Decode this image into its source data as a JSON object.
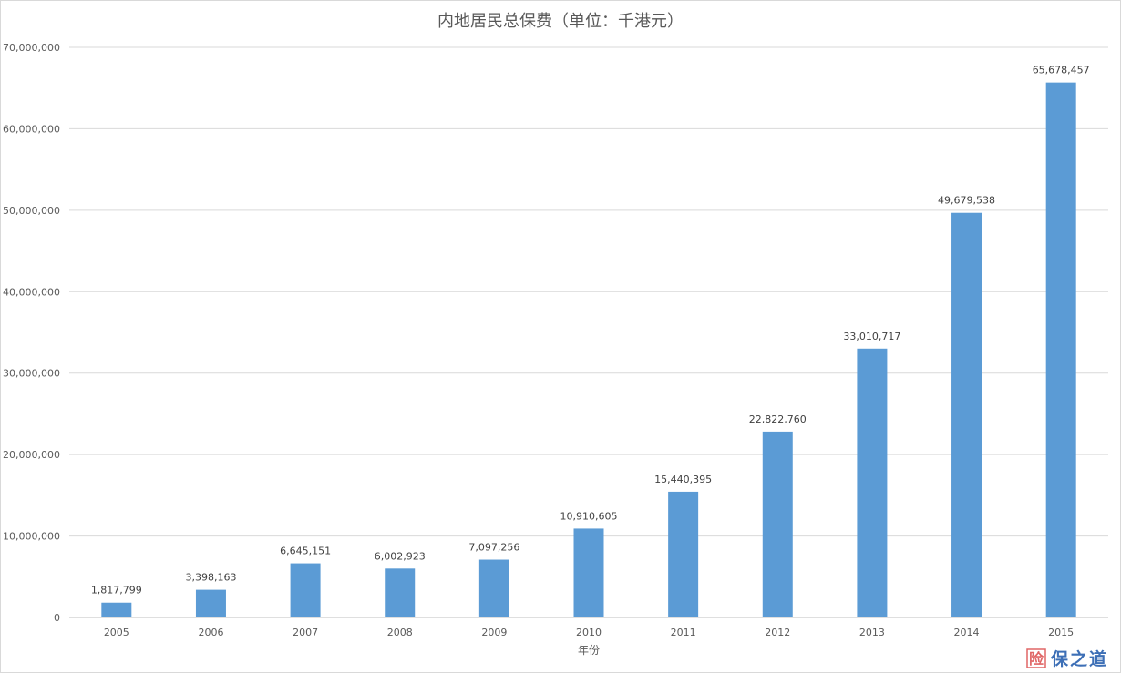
{
  "chart_data": {
    "type": "bar",
    "title": "内地居民总保费（单位：千港元）",
    "xlabel": "年份",
    "ylabel": "",
    "categories": [
      "2005",
      "2006",
      "2007",
      "2008",
      "2009",
      "2010",
      "2011",
      "2012",
      "2013",
      "2014",
      "2015"
    ],
    "values": [
      1817799,
      3398163,
      6645151,
      6002923,
      7097256,
      10910605,
      15440395,
      22822760,
      33010717,
      49679538,
      65678457
    ],
    "value_labels": [
      "1,817,799",
      "3,398,163",
      "6,645,151",
      "6,002,923",
      "7,097,256",
      "10,910,605",
      "15,440,395",
      "22,822,760",
      "33,010,717",
      "49,679,538",
      "65,678,457"
    ],
    "ylim": [
      0,
      70000000
    ],
    "yticks": [
      0,
      10000000,
      20000000,
      30000000,
      40000000,
      50000000,
      60000000,
      70000000
    ],
    "ytick_labels": [
      "0",
      "10,000,000",
      "20,000,000",
      "30,000,000",
      "40,000,000",
      "50,000,000",
      "60,000,000",
      "70,000,000"
    ],
    "grid": true,
    "legend": "none",
    "bar_color": "#5b9bd5"
  },
  "watermark": {
    "char": "险",
    "text": "保之道"
  }
}
